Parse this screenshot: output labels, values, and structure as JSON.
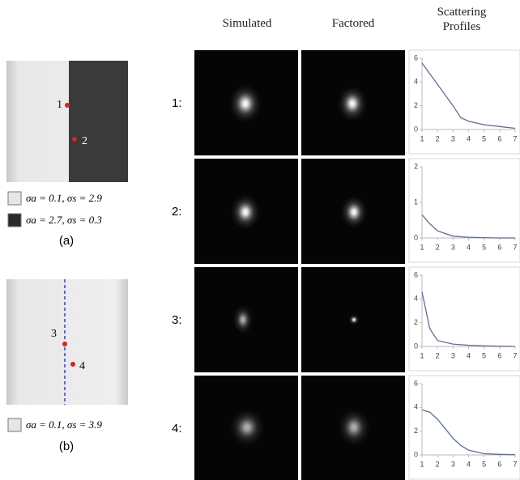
{
  "columns": [
    "Simulated",
    "Factored",
    "Scattering Profiles"
  ],
  "row_labels": [
    "1:",
    "2:",
    "3:",
    "4:"
  ],
  "panel_a": {
    "points": [
      "1",
      "2"
    ],
    "legend": [
      "σa = 0.1, σs = 2.9",
      "σa = 2.7, σs = 0.3"
    ],
    "caption": "(a)"
  },
  "panel_b": {
    "points": [
      "3",
      "4"
    ],
    "legend": [
      "σa = 0.1, σs = 3.9"
    ],
    "caption": "(b)"
  },
  "chart_data": [
    {
      "type": "line",
      "x": [
        1,
        2,
        3,
        3.5,
        4,
        5,
        6,
        7
      ],
      "values": [
        5.6,
        3.8,
        2.0,
        1.0,
        0.7,
        0.4,
        0.25,
        0.1
      ],
      "color": "#5b6f9c",
      "xlim": [
        1,
        7
      ],
      "xticks": [
        1,
        2,
        3,
        4,
        5,
        6,
        7
      ],
      "ylim": [
        0,
        6
      ],
      "yticks": [
        0,
        2,
        4,
        6
      ]
    },
    {
      "type": "line",
      "x": [
        1,
        1.5,
        2,
        3,
        4,
        5,
        6,
        7
      ],
      "values": [
        0.65,
        0.4,
        0.2,
        0.05,
        0.02,
        0.01,
        0,
        0
      ],
      "color": "#5b6f9c",
      "xlim": [
        1,
        7
      ],
      "xticks": [
        1,
        2,
        3,
        4,
        5,
        6,
        7
      ],
      "ylim": [
        0,
        2
      ],
      "yticks": [
        0,
        1,
        2
      ]
    },
    {
      "type": "line",
      "x": [
        1,
        1.5,
        2,
        3,
        4,
        5,
        6,
        7
      ],
      "values": [
        4.6,
        1.5,
        0.5,
        0.2,
        0.1,
        0.05,
        0.02,
        0.01
      ],
      "color": "#5b6f9c",
      "xlim": [
        1,
        7
      ],
      "xticks": [
        1,
        2,
        3,
        4,
        5,
        6,
        7
      ],
      "ylim": [
        0,
        6
      ],
      "yticks": [
        0,
        2,
        4,
        6
      ]
    },
    {
      "type": "line",
      "x": [
        1,
        1.5,
        2,
        2.5,
        3,
        3.5,
        4,
        5,
        6,
        7
      ],
      "values": [
        3.8,
        3.6,
        3.0,
        2.2,
        1.4,
        0.8,
        0.4,
        0.1,
        0.05,
        0.02
      ],
      "color": "#5b6f9c",
      "xlim": [
        1,
        7
      ],
      "xticks": [
        1,
        2,
        3,
        4,
        5,
        6,
        7
      ],
      "ylim": [
        0,
        6
      ],
      "yticks": [
        0,
        2,
        4,
        6
      ]
    }
  ]
}
